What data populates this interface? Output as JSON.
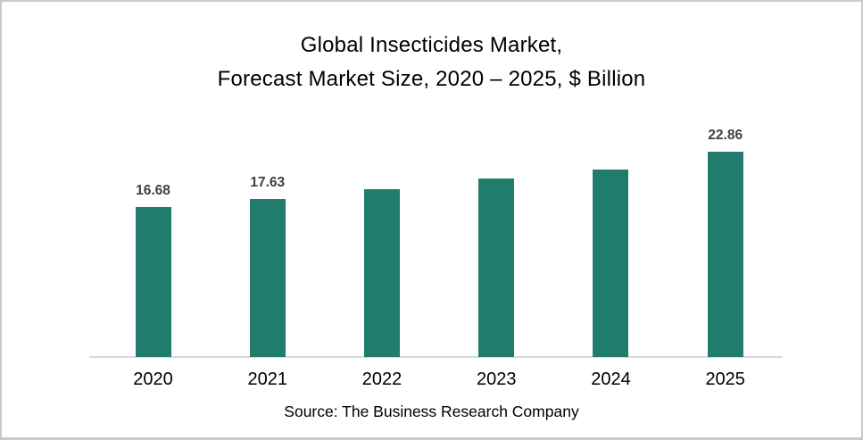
{
  "frame": {
    "background": "#FFFFFF",
    "border_color": "#C9C9C9"
  },
  "chart_data": {
    "type": "bar",
    "title_line1": "Global Insecticides Market,",
    "title_line2": "Forecast Market Size, 2020 – 2025, $ Billion",
    "categories": [
      "2020",
      "2021",
      "2022",
      "2023",
      "2024",
      "2025"
    ],
    "values": [
      16.68,
      17.63,
      18.7,
      19.9,
      20.9,
      22.86
    ],
    "data_labels": [
      "16.68",
      "17.63",
      "",
      "",
      "",
      "22.86"
    ],
    "unit": "$ Billion",
    "bar_color": "#217C6E",
    "value_label_color": "#404040",
    "axis_line_color": "#D9D9D9",
    "text_color": "#000000",
    "y_axis_visible": false,
    "gridlines": false,
    "legend": null,
    "baseline_value": 0,
    "source_note": "Source: The Business Research Company"
  }
}
